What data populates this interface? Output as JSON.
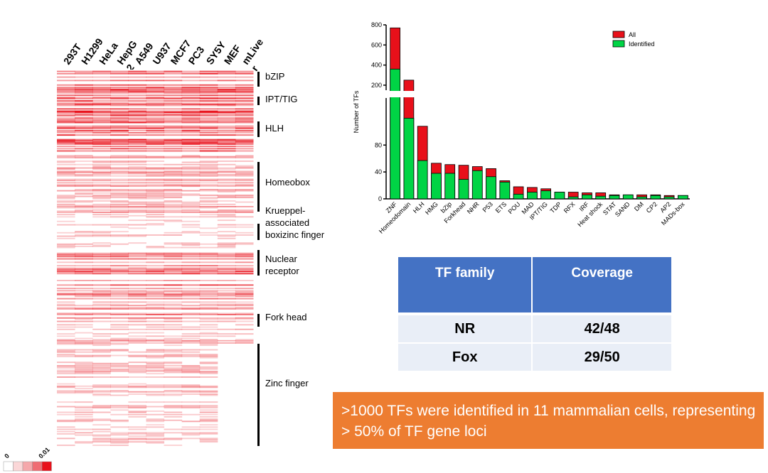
{
  "heatmap": {
    "columns": [
      "293T",
      "H1299",
      "HeLa",
      "HepG\n2",
      "A549",
      "U937",
      "MCF7",
      "PC3",
      "SY5Y",
      "MEF",
      "mLive\nr"
    ],
    "families": [
      "bZIP",
      "IPT/TIG",
      "HLH",
      "Homeobox",
      "Krueppel-\nassociated\nboxizinc finger",
      "Nuclear\nreceptor",
      "Fork head",
      "Zinc finger"
    ],
    "scale": {
      "min_label": "0",
      "max_label": "0.01",
      "min_value": 0,
      "max_value": 0.01
    },
    "colors": {
      "low": "#ffffff",
      "high": "#e8101a"
    }
  },
  "chart_data": {
    "type": "bar",
    "stacked": true,
    "ylabel": "Number of TFs",
    "categories": [
      "ZNF",
      "Homeodomain",
      "HLH",
      "HMG",
      "bZip",
      "Forkhead",
      "NHR",
      "P53",
      "ETS",
      "POU",
      "MAD",
      "IPT/TIG",
      "TDP",
      "RFX",
      "IRF",
      "Heat shock",
      "STAT",
      "SAND",
      "DM",
      "CP2",
      "AP2",
      "MADs-box"
    ],
    "series": [
      {
        "name": "All",
        "color": "#e8101a",
        "values": [
          770,
          250,
          108,
          53,
          51,
          50,
          48,
          45,
          27,
          18,
          17,
          15,
          10,
          10,
          9,
          9,
          6,
          6,
          6,
          6,
          5,
          5
        ]
      },
      {
        "name": "Identified",
        "color": "#00d445",
        "values": [
          360,
          120,
          57,
          38,
          38,
          29,
          42,
          33,
          25,
          7,
          10,
          12,
          10,
          3,
          6,
          4,
          5,
          6,
          3,
          5,
          3,
          5
        ]
      }
    ],
    "broken_axis": {
      "lower": {
        "ylim": [
          0,
          150
        ],
        "ticks": [
          0,
          40,
          80
        ]
      },
      "upper": {
        "ylim": [
          150,
          800
        ],
        "ticks": [
          200,
          400,
          600,
          800
        ]
      }
    },
    "legend": {
      "position": "top-right"
    }
  },
  "table": {
    "headers": [
      "TF family",
      "Coverage"
    ],
    "rows": [
      [
        "NR",
        "42/48"
      ],
      [
        "Fox",
        "29/50"
      ]
    ]
  },
  "summary": {
    "text": ">1000 TFs were identified in 11 mammalian cells, representing > 50% of TF gene loci"
  }
}
